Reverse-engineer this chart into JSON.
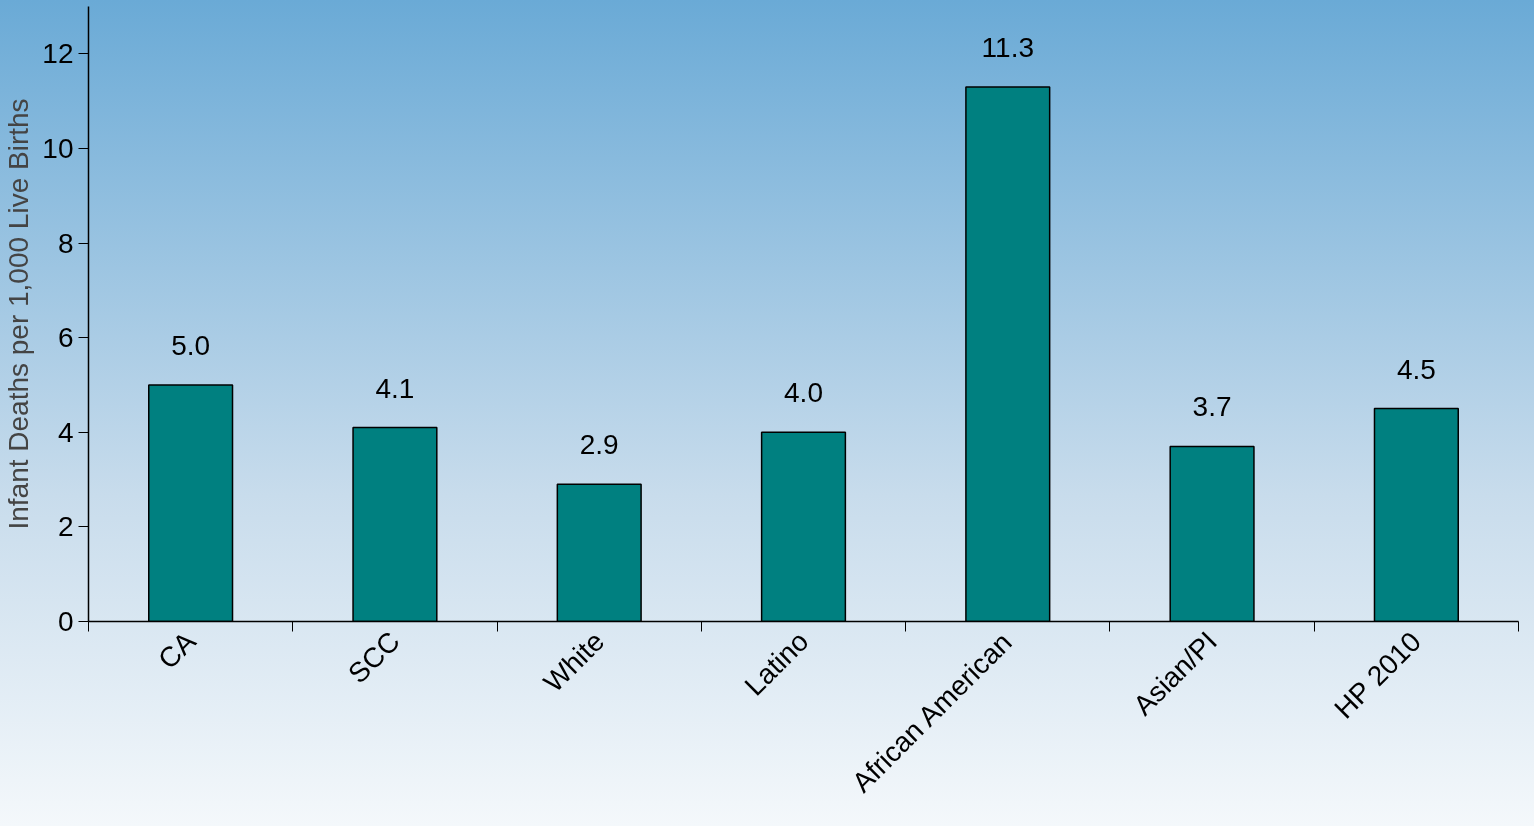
{
  "chart_data": {
    "type": "bar",
    "ylabel": "Infant Deaths per 1,000 Live Births",
    "categories": [
      "CA",
      "SCC",
      "White",
      "Latino",
      "African American",
      "Asian/PI",
      "HP 2010"
    ],
    "values": [
      5.0,
      4.1,
      2.9,
      4.0,
      11.3,
      3.7,
      4.5
    ],
    "value_labels": [
      "5.0",
      "4.1",
      "2.9",
      "4.0",
      "11.3",
      "3.7",
      "4.5"
    ],
    "color": "#008080",
    "ylim": [
      0,
      13
    ],
    "yticks": [
      0,
      2,
      4,
      6,
      8,
      10,
      12
    ],
    "grid": false
  }
}
